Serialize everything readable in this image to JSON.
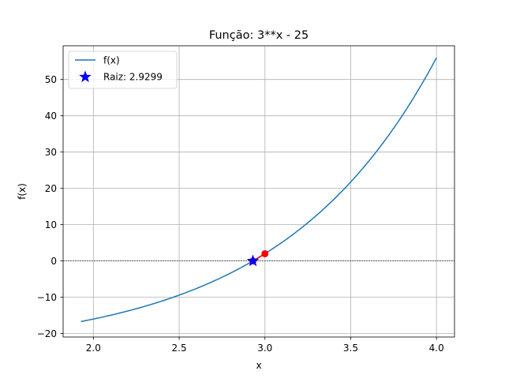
{
  "chart_data": {
    "type": "line",
    "title": "Função: 3**x - 25",
    "xlabel": "x",
    "ylabel": "f(x)",
    "xlim": [
      1.8236,
      4.1049
    ],
    "ylim": [
      -20.95,
      59.28
    ],
    "xticks": [
      2.0,
      2.5,
      3.0,
      3.5,
      4.0
    ],
    "xtick_labels": [
      "2.0",
      "2.5",
      "3.0",
      "3.5",
      "4.0"
    ],
    "yticks": [
      -20,
      -10,
      0,
      10,
      20,
      30,
      40,
      50
    ],
    "ytick_labels": [
      "−20",
      "−10",
      "0",
      "10",
      "20",
      "30",
      "40",
      "50"
    ],
    "grid": true,
    "legend_position": "top-left",
    "series": [
      {
        "name": "f(x)",
        "kind": "line",
        "color": "#1f77b4",
        "function": "3**x - 25",
        "x_range": [
          1.9273,
          4.0
        ]
      },
      {
        "kind": "line-with-markers",
        "color": "#ff0000",
        "points": [
          [
            3.0,
            2.0
          ],
          [
            2.9299,
            0.0
          ]
        ]
      },
      {
        "name": "Raiz: 2.9299",
        "kind": "marker",
        "marker": "star",
        "color": "#0000ff",
        "points": [
          [
            2.9299,
            0.0
          ]
        ]
      }
    ],
    "reference_line": {
      "y": 0,
      "style": "dashed",
      "color": "#000000"
    }
  }
}
